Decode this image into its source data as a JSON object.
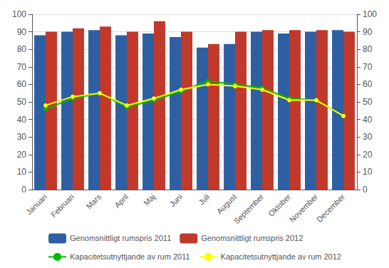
{
  "chart_data": {
    "type": "bar",
    "categories": [
      "Januari",
      "Februari",
      "Mars",
      "April",
      "Maj",
      "Juni",
      "Juli",
      "August",
      "September",
      "Oktober",
      "November",
      "December"
    ],
    "series": [
      {
        "name": "Genomsnittligt rumspris 2011",
        "type": "bar",
        "color": "#2E5FA3",
        "values": [
          88,
          90,
          91,
          88,
          89,
          87,
          81,
          83,
          90,
          89,
          90,
          91
        ]
      },
      {
        "name": "Genomsnittligt rumspris 2012",
        "type": "bar",
        "color": "#C0392B",
        "values": [
          90,
          92,
          93,
          90,
          96,
          90,
          83,
          90,
          91,
          91,
          91,
          90
        ]
      },
      {
        "name": "Kapacitetsutnyttjande av rum 2011",
        "type": "line",
        "marker": "circle",
        "axis": "y2",
        "color": "#00BB00",
        "values": [
          46,
          52,
          55,
          47,
          51,
          56,
          62,
          60,
          58,
          52,
          51,
          42
        ]
      },
      {
        "name": "Kapacitetsutnyttjande av rum 2012",
        "type": "line",
        "marker": "circle",
        "axis": "y2",
        "color": "#FFFF00",
        "values": [
          48,
          53,
          55,
          48,
          52,
          57,
          60,
          59,
          57,
          51,
          51,
          42
        ]
      }
    ],
    "ylim": [
      0,
      100
    ],
    "yticks": [
      0,
      10,
      20,
      30,
      40,
      50,
      60,
      70,
      80,
      90,
      100
    ],
    "y2lim": [
      0,
      100
    ],
    "y2ticks": [
      0,
      10,
      20,
      30,
      40,
      50,
      60,
      70,
      80,
      90,
      100
    ],
    "grid": true,
    "legend": "bottom"
  }
}
